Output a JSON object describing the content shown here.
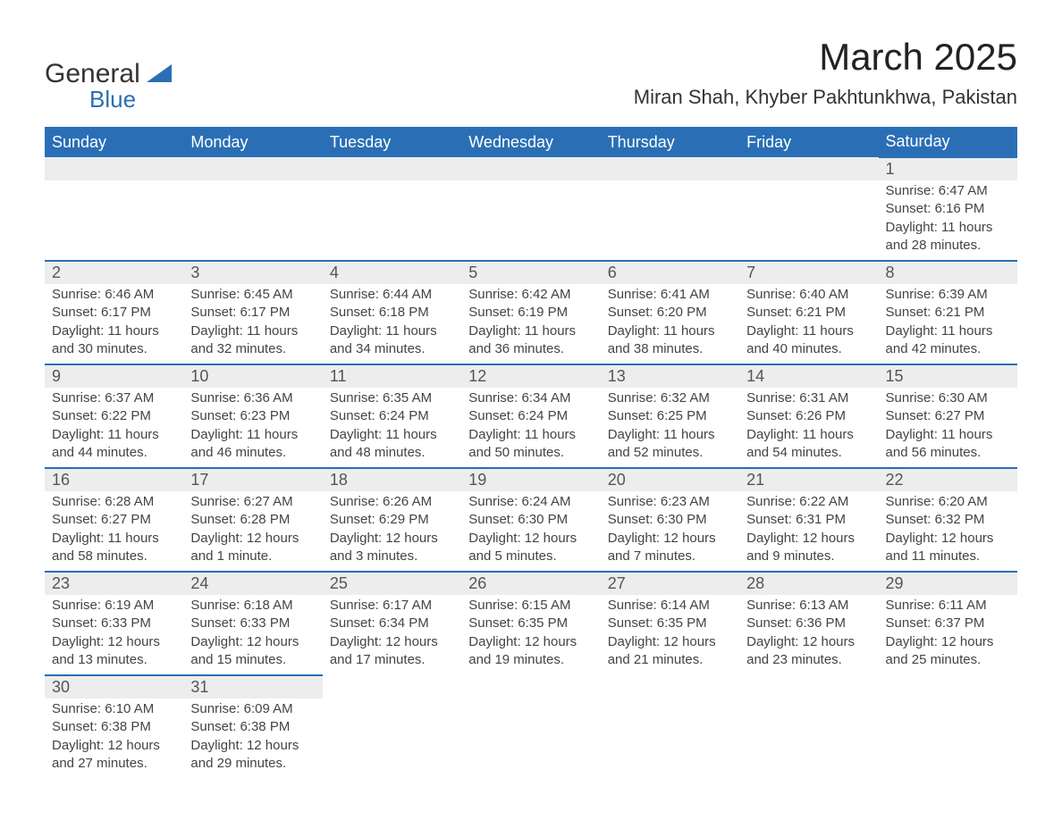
{
  "logo": {
    "text1": "General",
    "text2": "Blue",
    "brand_color": "#2a6fb5"
  },
  "header": {
    "month_title": "March 2025",
    "location": "Miran Shah, Khyber Pakhtunkhwa, Pakistan"
  },
  "colors": {
    "header_bg": "#2a6fb5",
    "header_text": "#ffffff",
    "daynum_bg": "#ededed",
    "row_divider": "#2a6fb5",
    "text": "#444444",
    "page_bg": "#ffffff"
  },
  "typography": {
    "month_title_fontsize": 42,
    "location_fontsize": 22,
    "weekday_fontsize": 18,
    "daynum_fontsize": 18,
    "body_fontsize": 15,
    "font_family": "Arial"
  },
  "weekdays": [
    "Sunday",
    "Monday",
    "Tuesday",
    "Wednesday",
    "Thursday",
    "Friday",
    "Saturday"
  ],
  "weeks": [
    [
      null,
      null,
      null,
      null,
      null,
      null,
      {
        "day": "1",
        "sunrise": "Sunrise: 6:47 AM",
        "sunset": "Sunset: 6:16 PM",
        "daylight1": "Daylight: 11 hours",
        "daylight2": "and 28 minutes."
      }
    ],
    [
      {
        "day": "2",
        "sunrise": "Sunrise: 6:46 AM",
        "sunset": "Sunset: 6:17 PM",
        "daylight1": "Daylight: 11 hours",
        "daylight2": "and 30 minutes."
      },
      {
        "day": "3",
        "sunrise": "Sunrise: 6:45 AM",
        "sunset": "Sunset: 6:17 PM",
        "daylight1": "Daylight: 11 hours",
        "daylight2": "and 32 minutes."
      },
      {
        "day": "4",
        "sunrise": "Sunrise: 6:44 AM",
        "sunset": "Sunset: 6:18 PM",
        "daylight1": "Daylight: 11 hours",
        "daylight2": "and 34 minutes."
      },
      {
        "day": "5",
        "sunrise": "Sunrise: 6:42 AM",
        "sunset": "Sunset: 6:19 PM",
        "daylight1": "Daylight: 11 hours",
        "daylight2": "and 36 minutes."
      },
      {
        "day": "6",
        "sunrise": "Sunrise: 6:41 AM",
        "sunset": "Sunset: 6:20 PM",
        "daylight1": "Daylight: 11 hours",
        "daylight2": "and 38 minutes."
      },
      {
        "day": "7",
        "sunrise": "Sunrise: 6:40 AM",
        "sunset": "Sunset: 6:21 PM",
        "daylight1": "Daylight: 11 hours",
        "daylight2": "and 40 minutes."
      },
      {
        "day": "8",
        "sunrise": "Sunrise: 6:39 AM",
        "sunset": "Sunset: 6:21 PM",
        "daylight1": "Daylight: 11 hours",
        "daylight2": "and 42 minutes."
      }
    ],
    [
      {
        "day": "9",
        "sunrise": "Sunrise: 6:37 AM",
        "sunset": "Sunset: 6:22 PM",
        "daylight1": "Daylight: 11 hours",
        "daylight2": "and 44 minutes."
      },
      {
        "day": "10",
        "sunrise": "Sunrise: 6:36 AM",
        "sunset": "Sunset: 6:23 PM",
        "daylight1": "Daylight: 11 hours",
        "daylight2": "and 46 minutes."
      },
      {
        "day": "11",
        "sunrise": "Sunrise: 6:35 AM",
        "sunset": "Sunset: 6:24 PM",
        "daylight1": "Daylight: 11 hours",
        "daylight2": "and 48 minutes."
      },
      {
        "day": "12",
        "sunrise": "Sunrise: 6:34 AM",
        "sunset": "Sunset: 6:24 PM",
        "daylight1": "Daylight: 11 hours",
        "daylight2": "and 50 minutes."
      },
      {
        "day": "13",
        "sunrise": "Sunrise: 6:32 AM",
        "sunset": "Sunset: 6:25 PM",
        "daylight1": "Daylight: 11 hours",
        "daylight2": "and 52 minutes."
      },
      {
        "day": "14",
        "sunrise": "Sunrise: 6:31 AM",
        "sunset": "Sunset: 6:26 PM",
        "daylight1": "Daylight: 11 hours",
        "daylight2": "and 54 minutes."
      },
      {
        "day": "15",
        "sunrise": "Sunrise: 6:30 AM",
        "sunset": "Sunset: 6:27 PM",
        "daylight1": "Daylight: 11 hours",
        "daylight2": "and 56 minutes."
      }
    ],
    [
      {
        "day": "16",
        "sunrise": "Sunrise: 6:28 AM",
        "sunset": "Sunset: 6:27 PM",
        "daylight1": "Daylight: 11 hours",
        "daylight2": "and 58 minutes."
      },
      {
        "day": "17",
        "sunrise": "Sunrise: 6:27 AM",
        "sunset": "Sunset: 6:28 PM",
        "daylight1": "Daylight: 12 hours",
        "daylight2": "and 1 minute."
      },
      {
        "day": "18",
        "sunrise": "Sunrise: 6:26 AM",
        "sunset": "Sunset: 6:29 PM",
        "daylight1": "Daylight: 12 hours",
        "daylight2": "and 3 minutes."
      },
      {
        "day": "19",
        "sunrise": "Sunrise: 6:24 AM",
        "sunset": "Sunset: 6:30 PM",
        "daylight1": "Daylight: 12 hours",
        "daylight2": "and 5 minutes."
      },
      {
        "day": "20",
        "sunrise": "Sunrise: 6:23 AM",
        "sunset": "Sunset: 6:30 PM",
        "daylight1": "Daylight: 12 hours",
        "daylight2": "and 7 minutes."
      },
      {
        "day": "21",
        "sunrise": "Sunrise: 6:22 AM",
        "sunset": "Sunset: 6:31 PM",
        "daylight1": "Daylight: 12 hours",
        "daylight2": "and 9 minutes."
      },
      {
        "day": "22",
        "sunrise": "Sunrise: 6:20 AM",
        "sunset": "Sunset: 6:32 PM",
        "daylight1": "Daylight: 12 hours",
        "daylight2": "and 11 minutes."
      }
    ],
    [
      {
        "day": "23",
        "sunrise": "Sunrise: 6:19 AM",
        "sunset": "Sunset: 6:33 PM",
        "daylight1": "Daylight: 12 hours",
        "daylight2": "and 13 minutes."
      },
      {
        "day": "24",
        "sunrise": "Sunrise: 6:18 AM",
        "sunset": "Sunset: 6:33 PM",
        "daylight1": "Daylight: 12 hours",
        "daylight2": "and 15 minutes."
      },
      {
        "day": "25",
        "sunrise": "Sunrise: 6:17 AM",
        "sunset": "Sunset: 6:34 PM",
        "daylight1": "Daylight: 12 hours",
        "daylight2": "and 17 minutes."
      },
      {
        "day": "26",
        "sunrise": "Sunrise: 6:15 AM",
        "sunset": "Sunset: 6:35 PM",
        "daylight1": "Daylight: 12 hours",
        "daylight2": "and 19 minutes."
      },
      {
        "day": "27",
        "sunrise": "Sunrise: 6:14 AM",
        "sunset": "Sunset: 6:35 PM",
        "daylight1": "Daylight: 12 hours",
        "daylight2": "and 21 minutes."
      },
      {
        "day": "28",
        "sunrise": "Sunrise: 6:13 AM",
        "sunset": "Sunset: 6:36 PM",
        "daylight1": "Daylight: 12 hours",
        "daylight2": "and 23 minutes."
      },
      {
        "day": "29",
        "sunrise": "Sunrise: 6:11 AM",
        "sunset": "Sunset: 6:37 PM",
        "daylight1": "Daylight: 12 hours",
        "daylight2": "and 25 minutes."
      }
    ],
    [
      {
        "day": "30",
        "sunrise": "Sunrise: 6:10 AM",
        "sunset": "Sunset: 6:38 PM",
        "daylight1": "Daylight: 12 hours",
        "daylight2": "and 27 minutes."
      },
      {
        "day": "31",
        "sunrise": "Sunrise: 6:09 AM",
        "sunset": "Sunset: 6:38 PM",
        "daylight1": "Daylight: 12 hours",
        "daylight2": "and 29 minutes."
      },
      null,
      null,
      null,
      null,
      null
    ]
  ]
}
